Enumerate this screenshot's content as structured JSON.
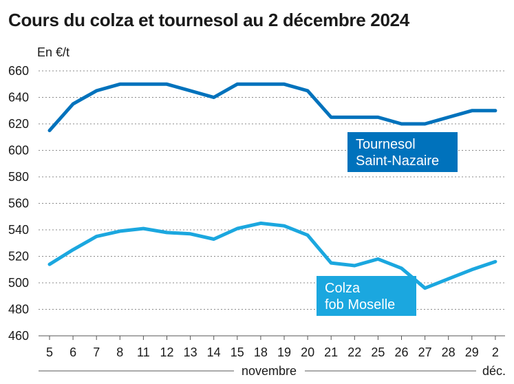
{
  "title": "Cours du colza et tournesol au 2 décembre 2024",
  "chart_data": {
    "type": "line",
    "title": "Cours du colza et tournesol au 2 décembre 2024",
    "ylabel": "En €/t",
    "xlabel": "",
    "ylim": [
      460,
      660
    ],
    "yticks": [
      460,
      480,
      500,
      520,
      540,
      560,
      580,
      600,
      620,
      640,
      660
    ],
    "categories": [
      "5",
      "6",
      "7",
      "8",
      "11",
      "12",
      "13",
      "14",
      "15",
      "18",
      "19",
      "20",
      "21",
      "22",
      "25",
      "26",
      "27",
      "28",
      "29",
      "2"
    ],
    "periods": [
      {
        "label": "novembre",
        "from": 0,
        "to": 18
      },
      {
        "label": "déc.",
        "from": 19,
        "to": 19
      }
    ],
    "grid": true,
    "series": [
      {
        "name": "Tournesol Saint-Nazaire",
        "label_lines": [
          "Tournesol",
          "Saint-Nazaire"
        ],
        "color": "#0072bc",
        "values": [
          615,
          635,
          645,
          650,
          650,
          650,
          645,
          640,
          650,
          650,
          650,
          645,
          625,
          625,
          625,
          620,
          620,
          625,
          630,
          630
        ]
      },
      {
        "name": "Colza fob Moselle",
        "label_lines": [
          "Colza",
          "fob Moselle"
        ],
        "color": "#1ba7df",
        "values": [
          514,
          525,
          535,
          539,
          541,
          538,
          537,
          533,
          541,
          545,
          543,
          536,
          515,
          513,
          518,
          511,
          496,
          503,
          510,
          516
        ]
      }
    ]
  }
}
